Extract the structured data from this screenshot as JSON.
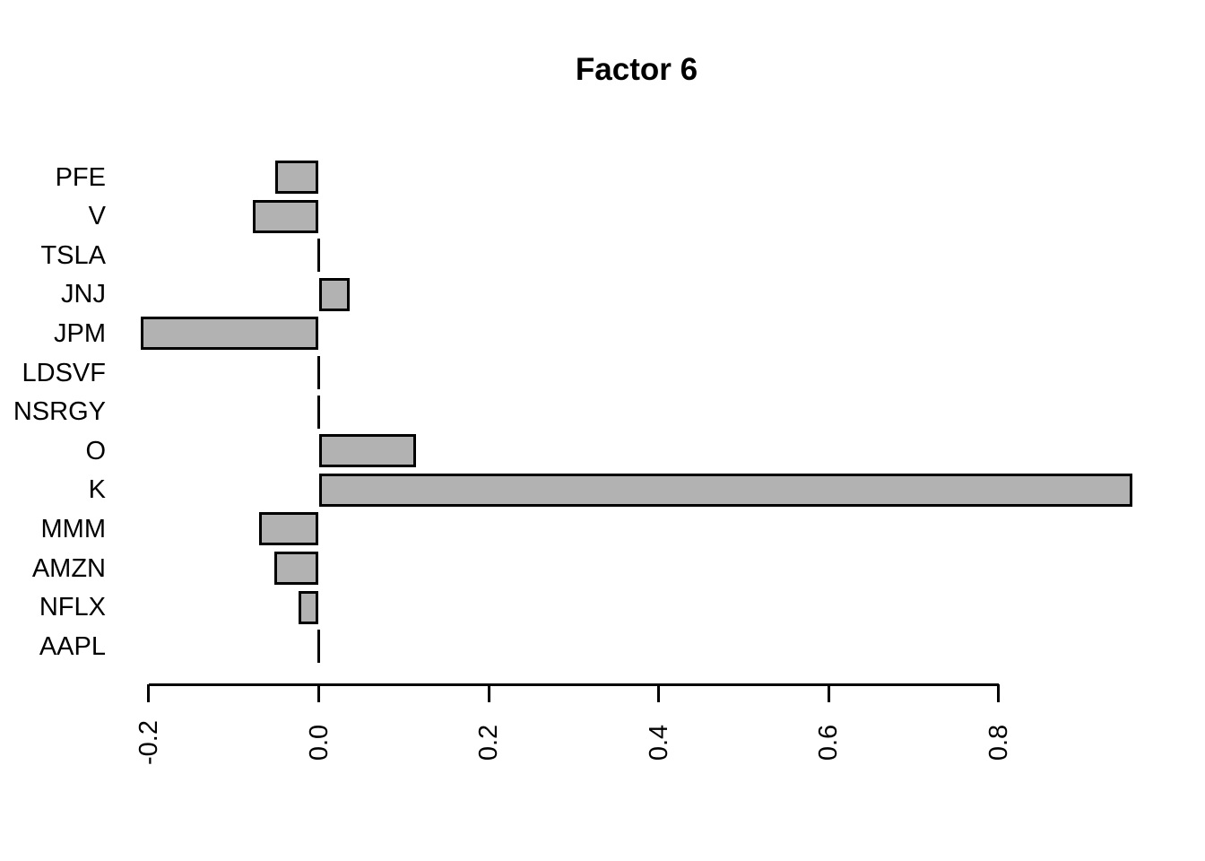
{
  "chart_data": {
    "type": "bar",
    "orientation": "horizontal",
    "title": "Factor 6",
    "categories": [
      "PFE",
      "V",
      "TSLA",
      "JNJ",
      "JPM",
      "LDSVF",
      "NSRGY",
      "O",
      "K",
      "MMM",
      "AMZN",
      "NFLX",
      "AAPL"
    ],
    "values": [
      -0.051,
      -0.078,
      0,
      0.036,
      -0.209,
      0,
      0,
      0.114,
      0.957,
      -0.07,
      -0.052,
      -0.024,
      0
    ],
    "x_ticks": [
      "-0.2",
      "0.0",
      "0.2",
      "0.4",
      "0.6",
      "0.8"
    ],
    "xlabel": "",
    "ylabel": "",
    "xlim": [
      -0.23,
      0.97
    ],
    "grid": false,
    "legend": false,
    "bar_color": "#b2b2b2",
    "bar_border_color": "#000000",
    "text_color": "#000000",
    "background_color": "#ffffff"
  }
}
